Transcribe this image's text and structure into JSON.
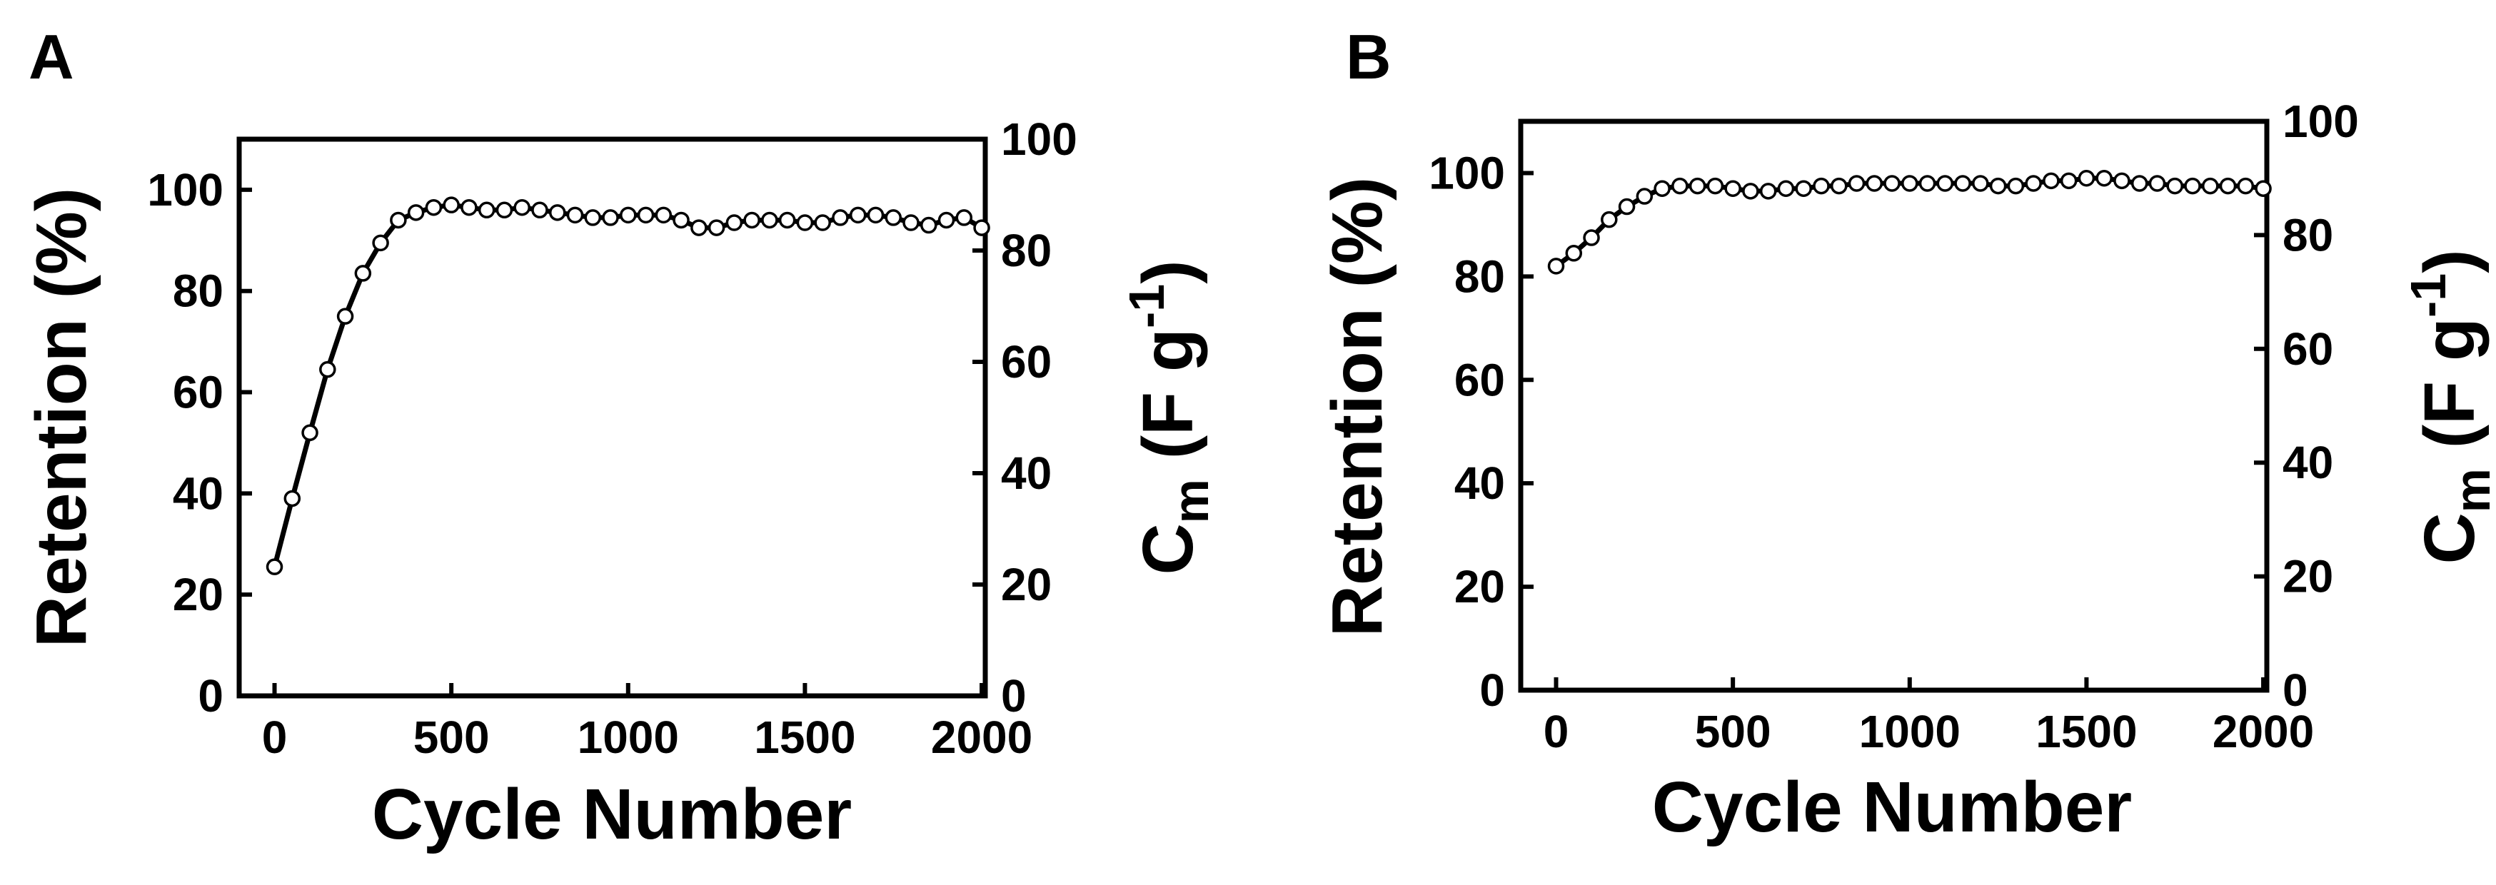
{
  "chart_data": [
    {
      "type": "scatter",
      "panel": "A",
      "xlabel": "Cycle Number",
      "ylabel": "Retention (%)",
      "y2label": {
        "main": "C",
        "sub": "m",
        "unit_prefix": " (F g",
        "sup": "-1",
        "unit_suffix": ")"
      },
      "xlim": [
        -100,
        2010
      ],
      "ylim": [
        0,
        110
      ],
      "y2lim": [
        0,
        100
      ],
      "xticks": [
        0,
        500,
        1000,
        1500,
        2000
      ],
      "yticks": [
        0,
        20,
        40,
        60,
        80,
        100
      ],
      "y2ticks": [
        0,
        20,
        40,
        60,
        80,
        100
      ],
      "grid": false,
      "series": [
        {
          "marker": "open-circle",
          "line": "solid",
          "x": [
            0,
            50,
            100,
            150,
            200,
            250,
            300,
            350,
            400,
            450,
            500,
            550,
            600,
            650,
            700,
            750,
            800,
            850,
            900,
            950,
            1000,
            1050,
            1100,
            1150,
            1200,
            1250,
            1300,
            1350,
            1400,
            1450,
            1500,
            1550,
            1600,
            1650,
            1700,
            1750,
            1800,
            1850,
            1900,
            1950,
            2000
          ],
          "y": [
            25.5,
            39,
            52,
            64.5,
            75,
            83.5,
            89.5,
            94,
            95.5,
            96.5,
            97,
            96.5,
            96,
            96,
            96.5,
            96,
            95.5,
            95,
            94.5,
            94.5,
            95,
            95,
            95,
            94,
            92.5,
            92.5,
            93.5,
            94,
            94,
            94,
            93.5,
            93.5,
            94.5,
            95,
            95,
            94.5,
            93.5,
            93,
            94,
            94.5,
            92.5
          ]
        }
      ]
    },
    {
      "type": "scatter",
      "panel": "B",
      "xlabel": "Cycle Number",
      "ylabel": "Retention (%)",
      "y2label": {
        "main": "C",
        "sub": "m",
        "unit_prefix": " (F g",
        "sup": "-1",
        "unit_suffix": ")"
      },
      "xlim": [
        -100,
        2010
      ],
      "ylim": [
        0,
        110
      ],
      "y2lim": [
        0,
        100
      ],
      "xticks": [
        0,
        500,
        1000,
        1500,
        2000
      ],
      "yticks": [
        0,
        20,
        40,
        60,
        80,
        100
      ],
      "y2ticks": [
        0,
        20,
        40,
        60,
        80,
        100
      ],
      "grid": false,
      "series": [
        {
          "marker": "open-circle",
          "line": "solid",
          "x": [
            0,
            50,
            100,
            150,
            200,
            250,
            300,
            350,
            400,
            450,
            500,
            550,
            600,
            650,
            700,
            750,
            800,
            850,
            900,
            950,
            1000,
            1050,
            1100,
            1150,
            1200,
            1250,
            1300,
            1350,
            1400,
            1450,
            1500,
            1550,
            1600,
            1650,
            1700,
            1750,
            1800,
            1850,
            1900,
            1950,
            2000
          ],
          "y": [
            82,
            84.5,
            87.5,
            91,
            93.5,
            95.5,
            97,
            97.5,
            97.5,
            97.5,
            97,
            96.5,
            96.5,
            97,
            97,
            97.5,
            97.5,
            98,
            98,
            98,
            98,
            98,
            98,
            98,
            98,
            97.5,
            97.5,
            98,
            98.5,
            98.5,
            99,
            99,
            98.5,
            98,
            98,
            97.5,
            97.5,
            97.5,
            97.5,
            97.5,
            97
          ]
        }
      ]
    }
  ]
}
